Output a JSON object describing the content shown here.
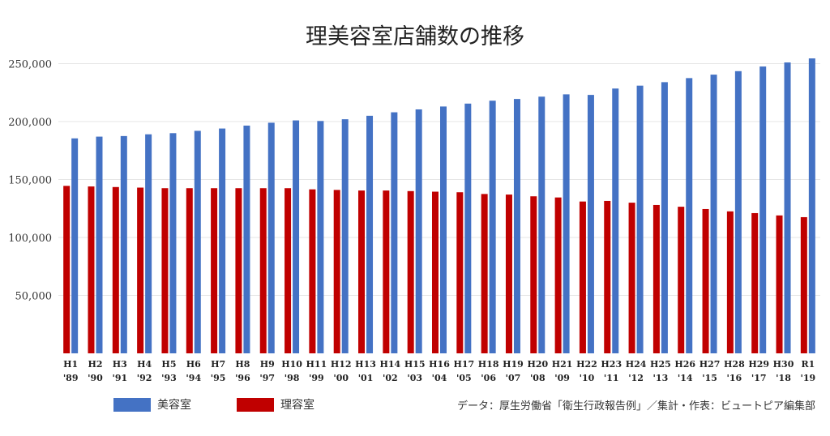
{
  "chart_data": {
    "type": "bar",
    "title": "理美容室店舗数の推移",
    "categories": [
      "H1",
      "H2",
      "H3",
      "H4",
      "H5",
      "H6",
      "H7",
      "H8",
      "H9",
      "H10",
      "H11",
      "H12",
      "H13",
      "H14",
      "H15",
      "H16",
      "H17",
      "H18",
      "H19",
      "H20",
      "H21",
      "H22",
      "H23",
      "H24",
      "H25",
      "H26",
      "H27",
      "H28",
      "H29",
      "H30",
      "R1"
    ],
    "years": [
      "'89",
      "'90",
      "'91",
      "'92",
      "'93",
      "'94",
      "'95",
      "'96",
      "'97",
      "'98",
      "'99",
      "'00",
      "'01",
      "'02",
      "'03",
      "'04",
      "'05",
      "'06",
      "'07",
      "'08",
      "'09",
      "'10",
      "'11",
      "'12",
      "'13",
      "'14",
      "'15",
      "'16",
      "'17",
      "'18",
      "'19"
    ],
    "series": [
      {
        "name": "理容室",
        "color": "#c00000",
        "values": [
          144500,
          144000,
          143500,
          143000,
          142500,
          142500,
          142500,
          142500,
          142500,
          142500,
          141500,
          141000,
          140500,
          140500,
          140000,
          139500,
          139000,
          137500,
          137000,
          135500,
          134500,
          131000,
          131500,
          130000,
          128000,
          126500,
          124500,
          122500,
          121000,
          119000,
          117500
        ]
      },
      {
        "name": "美容室",
        "color": "#4472c4",
        "values": [
          185500,
          187000,
          187500,
          189000,
          190000,
          192000,
          194000,
          196500,
          199000,
          201000,
          200500,
          202000,
          205000,
          208000,
          210500,
          213000,
          215500,
          218000,
          219500,
          221500,
          223500,
          223000,
          228500,
          231000,
          234000,
          237500,
          240500,
          243500,
          247500,
          251000,
          254500
        ]
      }
    ],
    "ylim": [
      0,
      260000
    ],
    "yticks": [
      50000,
      100000,
      150000,
      200000,
      250000
    ],
    "ytick_labels": [
      "50,000",
      "100,000",
      "150,000",
      "200,000",
      "250,000"
    ],
    "xlabel": "",
    "ylabel": "",
    "grid": true,
    "legend": [
      "美容室",
      "理容室"
    ],
    "legend_placement": "bottom-left"
  },
  "source_note": "データ：厚生労働省「衛生行政報告例」／集計・作表：ビュートピア編集部"
}
